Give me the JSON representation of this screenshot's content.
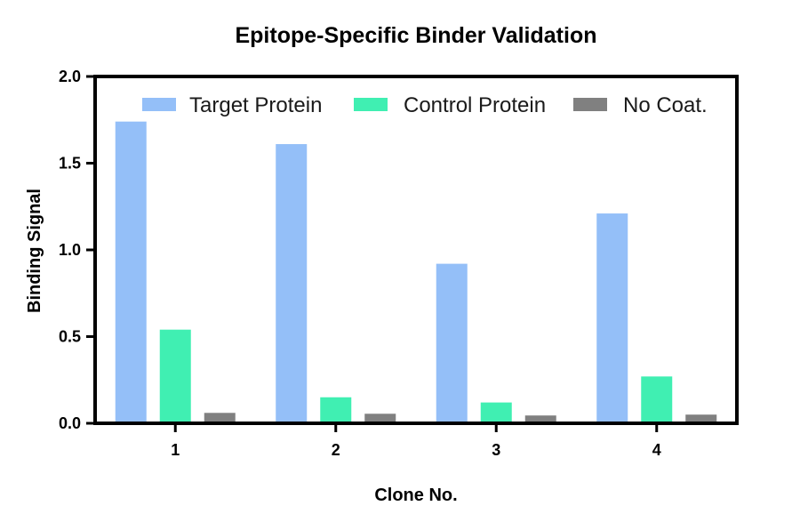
{
  "chart_data": {
    "type": "bar",
    "title": "Epitope-Specific Binder Validation",
    "xlabel": "Clone No.",
    "ylabel": "Binding Signal",
    "categories": [
      "1",
      "2",
      "3",
      "4"
    ],
    "series": [
      {
        "name": "Target Protein",
        "color": "#94bff8",
        "values": [
          1.74,
          1.61,
          0.92,
          1.21
        ]
      },
      {
        "name": "Control Protein",
        "color": "#40efb2",
        "values": [
          0.54,
          0.15,
          0.12,
          0.27
        ]
      },
      {
        "name": "No Coat.",
        "color": "#808080",
        "values": [
          0.06,
          0.055,
          0.045,
          0.05
        ]
      }
    ],
    "ylim": [
      0,
      2.0
    ],
    "yticks": [
      "0.0",
      "0.5",
      "1.0",
      "1.5",
      "2.0"
    ],
    "legend_position": "top",
    "grid": false
  }
}
